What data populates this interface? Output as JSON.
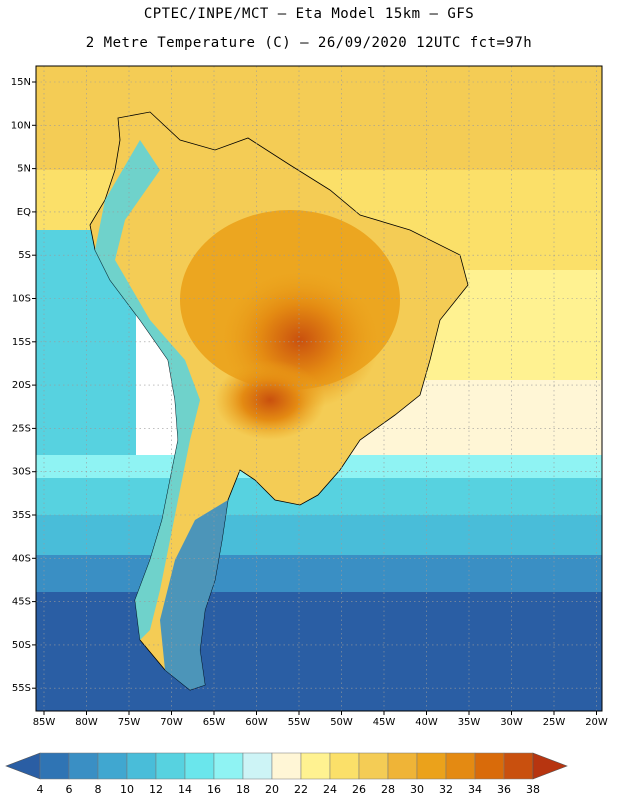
{
  "header": {
    "line1": "CPTEC/INPE/MCT –  Eta Model 15km – GFS",
    "line2": "2 Metre Temperature (C) – 26/09/2020 12UTC fct=97h"
  },
  "map": {
    "lat_labels": [
      "15N",
      "10N",
      "5N",
      "EQ",
      "5S",
      "10S",
      "15S",
      "20S",
      "25S",
      "30S",
      "35S",
      "40S",
      "45S",
      "50S",
      "55S"
    ],
    "lon_labels": [
      "85W",
      "80W",
      "75W",
      "70W",
      "65W",
      "60W",
      "55W",
      "50W",
      "45W",
      "40W",
      "35W",
      "30W",
      "25W",
      "20W"
    ]
  },
  "legend": {
    "values": [
      "4",
      "6",
      "8",
      "10",
      "12",
      "14",
      "16",
      "18",
      "20",
      "22",
      "24",
      "26",
      "28",
      "30",
      "32",
      "34",
      "36",
      "38"
    ],
    "colors": [
      "#2a5ea4",
      "#2f74b4",
      "#3a8fc4",
      "#40a7d0",
      "#49bdd9",
      "#57d2e0",
      "#6ae6ec",
      "#8ff3f3",
      "#cdf4f6",
      "#fff6d6",
      "#fff291",
      "#fbe069",
      "#f4cc55",
      "#efb437",
      "#eba21b",
      "#e48a12",
      "#d96b0a",
      "#c9500e",
      "#b73510"
    ]
  }
}
